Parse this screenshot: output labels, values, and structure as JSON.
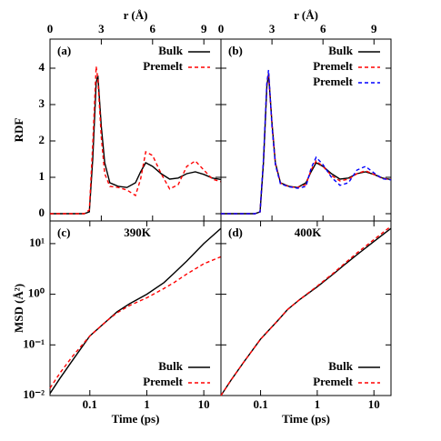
{
  "chart_data": [
    {
      "type": "line",
      "label": "(a)",
      "xlabel": "r (Å)",
      "ylabel": "RDF",
      "legend": "upper right",
      "x": [
        0,
        1,
        2,
        2.3,
        2.5,
        2.7,
        2.8,
        3.0,
        3.2,
        3.5,
        4,
        4.5,
        5,
        5.3,
        5.6,
        6,
        6.5,
        7,
        7.5,
        8,
        8.5,
        9,
        9.5,
        10
      ],
      "series": [
        {
          "name": "Bulk",
          "color": "#000000",
          "dash": false,
          "values": [
            0,
            0,
            0,
            0.05,
            1.5,
            3.6,
            3.8,
            2.4,
            1.4,
            0.85,
            0.75,
            0.72,
            0.85,
            1.15,
            1.4,
            1.3,
            1.1,
            0.95,
            0.98,
            1.1,
            1.15,
            1.08,
            0.98,
            0.94
          ]
        },
        {
          "name": "Premelt",
          "color": "#ff0000",
          "dash": true,
          "values": [
            0,
            0,
            0,
            0.1,
            1.9,
            4.05,
            3.7,
            2.1,
            1.1,
            0.75,
            0.72,
            0.65,
            0.5,
            0.95,
            1.7,
            1.6,
            1.1,
            0.68,
            0.8,
            1.3,
            1.45,
            1.2,
            0.95,
            0.88
          ]
        }
      ],
      "xlim": [
        0,
        10
      ],
      "ylim": [
        -0.2,
        4.8
      ],
      "xticks": [
        0,
        3,
        6,
        9
      ],
      "yticks": [
        0,
        1,
        2,
        3,
        4
      ]
    },
    {
      "type": "line",
      "label": "(b)",
      "xlabel": "r (Å)",
      "legend": "upper right",
      "x": [
        0,
        1,
        2,
        2.3,
        2.5,
        2.7,
        2.8,
        3.0,
        3.2,
        3.5,
        4,
        4.5,
        5,
        5.3,
        5.6,
        6,
        6.5,
        7,
        7.5,
        8,
        8.5,
        9,
        9.5,
        10
      ],
      "series": [
        {
          "name": "Bulk",
          "color": "#000000",
          "dash": false,
          "values": [
            0,
            0,
            0,
            0.05,
            1.4,
            3.5,
            3.85,
            2.5,
            1.4,
            0.85,
            0.75,
            0.72,
            0.85,
            1.15,
            1.4,
            1.3,
            1.1,
            0.95,
            0.98,
            1.1,
            1.15,
            1.08,
            0.98,
            0.94
          ]
        },
        {
          "name": "Premelt",
          "color": "#ff0000",
          "dash": true,
          "values": [
            0,
            0,
            0,
            0.05,
            1.45,
            3.55,
            3.85,
            2.45,
            1.38,
            0.84,
            0.74,
            0.72,
            0.8,
            1.2,
            1.45,
            1.3,
            1.05,
            0.9,
            0.95,
            1.1,
            1.18,
            1.08,
            0.97,
            0.94
          ]
        },
        {
          "name": "Premelt",
          "color": "#0000ff",
          "dash": true,
          "values": [
            0,
            0,
            0,
            0.05,
            1.5,
            3.6,
            3.95,
            2.4,
            1.35,
            0.82,
            0.74,
            0.7,
            0.75,
            1.25,
            1.55,
            1.35,
            1.0,
            0.78,
            0.85,
            1.2,
            1.3,
            1.12,
            0.96,
            0.93
          ]
        }
      ],
      "xlim": [
        0,
        10
      ],
      "ylim": [
        -0.2,
        4.8
      ],
      "xticks": [
        0,
        3,
        6,
        9
      ],
      "yticks": [
        0,
        1,
        2,
        3,
        4
      ]
    },
    {
      "type": "line",
      "label": "(c)",
      "annotation": "390K",
      "xlabel": "Time (ps)",
      "ylabel": "MSD (Å²)",
      "legend": "lower right",
      "xscale": "log",
      "yscale": "log",
      "x": [
        0.02,
        0.03,
        0.05,
        0.1,
        0.2,
        0.3,
        0.5,
        1,
        2,
        3,
        5,
        10,
        20
      ],
      "series": [
        {
          "name": "Bulk",
          "color": "#000000",
          "dash": false,
          "values": [
            0.011,
            0.022,
            0.05,
            0.15,
            0.3,
            0.45,
            0.65,
            1.0,
            1.7,
            2.6,
            4.5,
            10,
            20
          ]
        },
        {
          "name": "Premelt",
          "color": "#ff0000",
          "dash": true,
          "values": [
            0.014,
            0.028,
            0.06,
            0.15,
            0.3,
            0.43,
            0.6,
            0.85,
            1.3,
            1.7,
            2.5,
            4,
            5.5
          ]
        }
      ],
      "xlim": [
        0.02,
        20
      ],
      "ylim": [
        0.01,
        28
      ],
      "xticks": [
        0.1,
        1,
        10
      ],
      "yticks": [
        {
          "value": 0.01,
          "label": "10⁻²"
        },
        {
          "value": 0.1,
          "label": "10⁻¹"
        },
        {
          "value": 1,
          "label": "10⁰"
        },
        {
          "value": 10,
          "label": "10¹"
        }
      ]
    },
    {
      "type": "line",
      "label": "(d)",
      "annotation": "400K",
      "xlabel": "Time (ps)",
      "legend": "lower right",
      "xscale": "log",
      "yscale": "log",
      "x": [
        0.02,
        0.03,
        0.05,
        0.1,
        0.2,
        0.3,
        0.5,
        1,
        2,
        3,
        5,
        10,
        20
      ],
      "series": [
        {
          "name": "Bulk",
          "color": "#000000",
          "dash": false,
          "values": [
            0.01,
            0.02,
            0.045,
            0.13,
            0.3,
            0.5,
            0.8,
            1.4,
            2.6,
            3.8,
            6,
            11,
            20
          ]
        },
        {
          "name": "Premelt",
          "color": "#ff0000",
          "dash": true,
          "values": [
            0.01,
            0.02,
            0.045,
            0.13,
            0.3,
            0.5,
            0.8,
            1.45,
            2.7,
            4,
            6.5,
            12,
            22
          ]
        }
      ],
      "xlim": [
        0.02,
        20
      ],
      "ylim": [
        0.01,
        28
      ],
      "xticks": [
        0.1,
        1,
        10
      ],
      "yticks": [
        {
          "value": 0.01,
          "label": "10⁻²"
        },
        {
          "value": 0.1,
          "label": "10⁻¹"
        },
        {
          "value": 1,
          "label": "10⁰"
        },
        {
          "value": 10,
          "label": "10¹"
        }
      ]
    }
  ]
}
